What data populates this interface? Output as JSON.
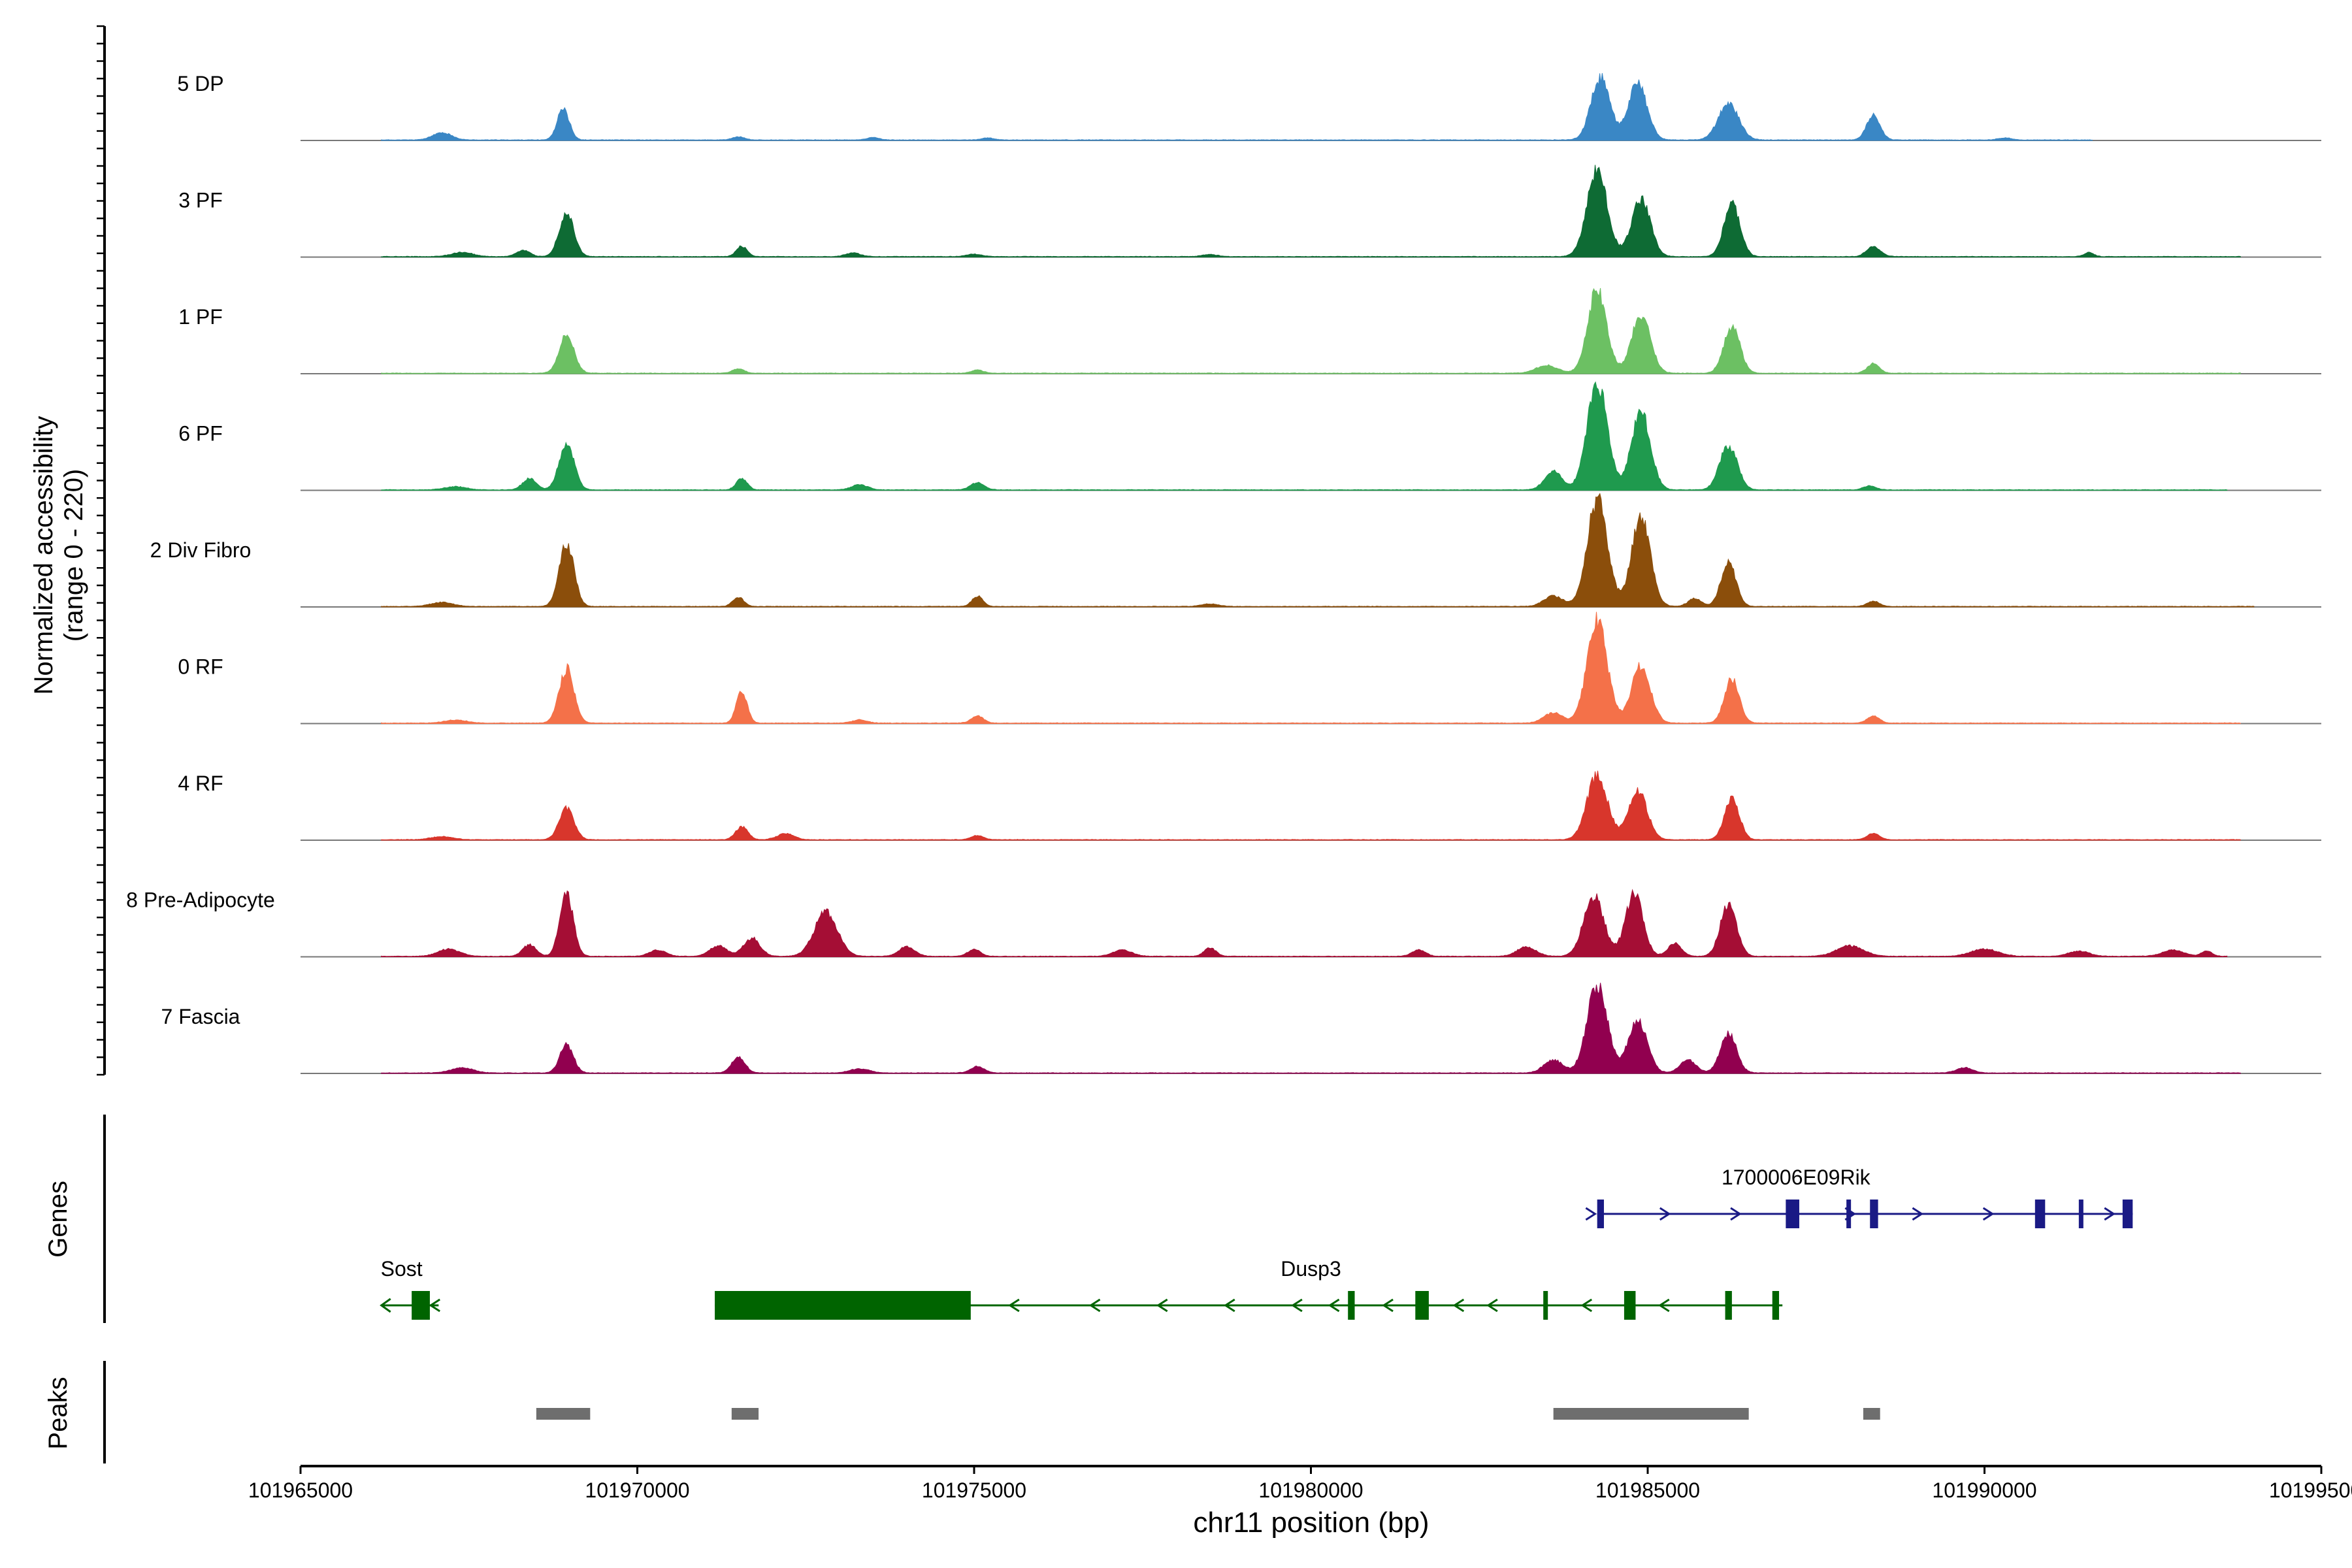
{
  "chart_data": {
    "type": "area",
    "title": "",
    "ylabel_line1": "Normalized accessibility",
    "ylabel_line2": "(range 0 - 220)",
    "ylim": [
      0,
      220
    ],
    "xlabel": "chr11 position (bp)",
    "xlim": [
      101965000,
      101995000
    ],
    "xticks": [
      101965000,
      101970000,
      101975000,
      101980000,
      101985000,
      101990000,
      101995000
    ],
    "xtick_labels": [
      "101965000",
      "101970000",
      "101975000",
      "101980000",
      "101985000",
      "101990000",
      "101995000"
    ],
    "tracks": [
      {
        "name": "5 DP",
        "color": "#3A87C5",
        "extent": [
          101966200,
          101991600
        ],
        "peaks": [
          [
            101967100,
            14,
            140
          ],
          [
            101968900,
            60,
            90
          ],
          [
            101971500,
            6,
            90
          ],
          [
            101973500,
            5,
            90
          ],
          [
            101975200,
            4,
            90
          ],
          [
            101984300,
            120,
            140
          ],
          [
            101984850,
            108,
            140
          ],
          [
            101986200,
            70,
            150
          ],
          [
            101988350,
            48,
            100
          ],
          [
            101990300,
            4,
            100
          ]
        ]
      },
      {
        "name": "3 PF",
        "color": "#0E6B34",
        "extent": [
          101966200,
          101993800
        ],
        "peaks": [
          [
            101967400,
            8,
            160
          ],
          [
            101968300,
            12,
            100
          ],
          [
            101968950,
            85,
            110
          ],
          [
            101971550,
            20,
            80
          ],
          [
            101973200,
            7,
            110
          ],
          [
            101975000,
            5,
            110
          ],
          [
            101978500,
            4,
            110
          ],
          [
            101984250,
            165,
            150
          ],
          [
            101984900,
            110,
            140
          ],
          [
            101986250,
            100,
            120
          ],
          [
            101988350,
            20,
            100
          ],
          [
            101991550,
            8,
            70
          ]
        ]
      },
      {
        "name": "1 PF",
        "color": "#6CC063",
        "extent": [
          101966200,
          101993800
        ],
        "peaks": [
          [
            101968950,
            75,
            110
          ],
          [
            101971500,
            8,
            90
          ],
          [
            101975050,
            6,
            90
          ],
          [
            101983500,
            15,
            160
          ],
          [
            101984250,
            160,
            140
          ],
          [
            101984900,
            110,
            140
          ],
          [
            101986250,
            90,
            120
          ],
          [
            101988350,
            18,
            90
          ]
        ]
      },
      {
        "name": "6 PF",
        "color": "#1F9A4E",
        "extent": [
          101966200,
          101993600
        ],
        "peaks": [
          [
            101967300,
            6,
            160
          ],
          [
            101968400,
            22,
            100
          ],
          [
            101968950,
            90,
            110
          ],
          [
            101971550,
            22,
            80
          ],
          [
            101973300,
            10,
            120
          ],
          [
            101975050,
            14,
            100
          ],
          [
            101983600,
            35,
            130
          ],
          [
            101984250,
            205,
            150
          ],
          [
            101984900,
            150,
            140
          ],
          [
            101986200,
            85,
            130
          ],
          [
            101988300,
            8,
            90
          ]
        ]
      },
      {
        "name": "2 Div Fibro",
        "color": "#8B4E0B",
        "extent": [
          101966200,
          101994000
        ],
        "peaks": [
          [
            101967100,
            8,
            160
          ],
          [
            101968950,
            120,
            110
          ],
          [
            101971500,
            18,
            80
          ],
          [
            101975050,
            20,
            80
          ],
          [
            101978500,
            5,
            120
          ],
          [
            101983600,
            20,
            140
          ],
          [
            101984250,
            205,
            150
          ],
          [
            101984900,
            170,
            140
          ],
          [
            101985700,
            15,
            100
          ],
          [
            101986200,
            85,
            110
          ],
          [
            101988350,
            10,
            90
          ]
        ]
      },
      {
        "name": "0 RF",
        "color": "#F47149",
        "extent": [
          101966200,
          101993800
        ],
        "peaks": [
          [
            101967300,
            6,
            160
          ],
          [
            101968950,
            105,
            110
          ],
          [
            101971550,
            60,
            80
          ],
          [
            101973300,
            6,
            110
          ],
          [
            101975050,
            14,
            90
          ],
          [
            101983600,
            20,
            140
          ],
          [
            101984250,
            195,
            150
          ],
          [
            101984900,
            110,
            140
          ],
          [
            101986250,
            85,
            110
          ],
          [
            101988350,
            14,
            90
          ]
        ]
      },
      {
        "name": "4 RF",
        "color": "#D8362C",
        "extent": [
          101966200,
          101993800
        ],
        "peaks": [
          [
            101967100,
            6,
            160
          ],
          [
            101968950,
            60,
            110
          ],
          [
            101971550,
            25,
            90
          ],
          [
            101972200,
            12,
            120
          ],
          [
            101975050,
            8,
            90
          ],
          [
            101984250,
            125,
            150
          ],
          [
            101984850,
            95,
            140
          ],
          [
            101986250,
            80,
            110
          ],
          [
            101988350,
            12,
            90
          ]
        ]
      },
      {
        "name": "8 Pre-Adipocyte",
        "color": "#A50E35",
        "extent": [
          101966200,
          101993600
        ],
        "peaks": [
          [
            101967200,
            14,
            160
          ],
          [
            101968400,
            22,
            100
          ],
          [
            101968950,
            120,
            100
          ],
          [
            101970300,
            12,
            120
          ],
          [
            101971200,
            20,
            130
          ],
          [
            101971700,
            35,
            120
          ],
          [
            101972800,
            85,
            170
          ],
          [
            101974000,
            18,
            120
          ],
          [
            101975000,
            14,
            90
          ],
          [
            101977200,
            12,
            140
          ],
          [
            101978500,
            16,
            90
          ],
          [
            101981600,
            12,
            100
          ],
          [
            101983200,
            18,
            140
          ],
          [
            101984200,
            115,
            150
          ],
          [
            101984800,
            120,
            130
          ],
          [
            101985400,
            25,
            100
          ],
          [
            101986200,
            100,
            120
          ],
          [
            101988000,
            20,
            200
          ],
          [
            101990000,
            14,
            200
          ],
          [
            101991400,
            10,
            150
          ],
          [
            101992800,
            12,
            160
          ],
          [
            101993300,
            10,
            80
          ]
        ]
      },
      {
        "name": "7 Fascia",
        "color": "#91004F",
        "extent": [
          101966200,
          101993800
        ],
        "peaks": [
          [
            101967400,
            10,
            160
          ],
          [
            101968950,
            55,
            100
          ],
          [
            101971500,
            30,
            100
          ],
          [
            101973300,
            8,
            140
          ],
          [
            101975050,
            12,
            100
          ],
          [
            101983600,
            25,
            140
          ],
          [
            101984250,
            170,
            150
          ],
          [
            101984850,
            100,
            140
          ],
          [
            101985600,
            25,
            120
          ],
          [
            101986200,
            75,
            120
          ],
          [
            101989700,
            10,
            120
          ]
        ]
      }
    ],
    "genes_label": "Genes",
    "genes": [
      {
        "name": "1700006E09Rik",
        "strand": "+",
        "color": "#1A1A85",
        "start": 101984250,
        "end": 101992200,
        "label_x": 101987200,
        "exons": [
          [
            101984250,
            101984350
          ],
          [
            101987050,
            101987250
          ],
          [
            101987950,
            101988000
          ],
          [
            101988300,
            101988420
          ],
          [
            101990750,
            101990900
          ],
          [
            101991400,
            101991450
          ],
          [
            101992050,
            101992200
          ]
        ],
        "chevrons": [
          101984150,
          101985250,
          101986300,
          101988000,
          101989000,
          101990050,
          101991850
        ]
      },
      {
        "name": "Sost",
        "strand": "-",
        "color": "#006400",
        "start": 101966200,
        "end": 101967050,
        "label_x": 101966500,
        "exons": [
          [
            101966650,
            101966920
          ]
        ],
        "chevrons": [
          101967000
        ]
      },
      {
        "name": "Dusp3",
        "strand": "-",
        "color": "#006400",
        "start": 101971150,
        "end": 101987000,
        "label_x": 101980000,
        "exons": [
          [
            101971150,
            101974950
          ],
          [
            101980550,
            101980650
          ],
          [
            101981550,
            101981750
          ],
          [
            101983450,
            101983500
          ],
          [
            101984650,
            101984820
          ],
          [
            101986150,
            101986250
          ],
          [
            101986850,
            101986950
          ]
        ],
        "chevrons": [
          101975600,
          101976800,
          101977800,
          101978800,
          101979800,
          101980350,
          101981150,
          101982200,
          101982700,
          101984100,
          101985250
        ]
      }
    ],
    "peaks_label": "Peaks",
    "peak_regions": [
      [
        101968500,
        101969300
      ],
      [
        101971400,
        101971800
      ],
      [
        101983600,
        101986500
      ],
      [
        101988200,
        101988450
      ]
    ]
  }
}
